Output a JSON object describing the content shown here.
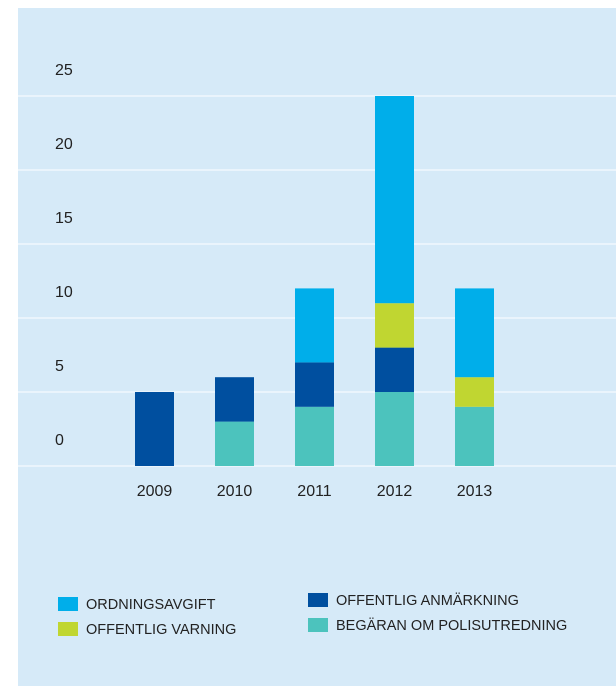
{
  "chart_data": {
    "type": "stacked_bar",
    "categories": [
      "2009",
      "2010",
      "2011",
      "2012",
      "2013"
    ],
    "series": [
      {
        "name": "BEGÄRAN OM POLISUTREDNING",
        "color": "#4cc3bd",
        "values": [
          0,
          3,
          4,
          5,
          4
        ]
      },
      {
        "name": "OFFENTLIG ANMÄRKNING",
        "color": "#004f9f",
        "values": [
          5,
          3,
          3,
          3,
          0
        ]
      },
      {
        "name": "OFFENTLIG VARNING",
        "color": "#c0d631",
        "values": [
          0,
          0,
          0,
          3,
          2
        ]
      },
      {
        "name": "ORDNINGSAVGIFT",
        "color": "#00aeea",
        "values": [
          0,
          0,
          5,
          14,
          6
        ]
      }
    ],
    "ylim": [
      0,
      25
    ],
    "yticks": [
      0,
      5,
      10,
      15,
      20,
      25
    ],
    "grid": true
  }
}
